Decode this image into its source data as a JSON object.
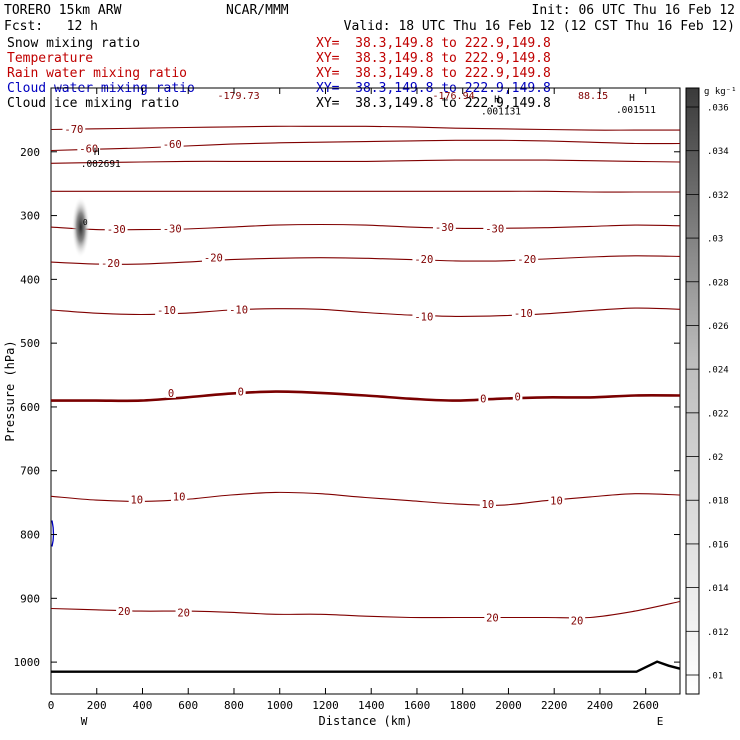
{
  "header": {
    "model": "TORERO  15km ARW",
    "center": "NCAR/MMM",
    "init": "Init: 06 UTC Thu 16 Feb 12",
    "fcst": "Fcst:   12 h",
    "valid": "Valid: 18 UTC Thu 16 Feb 12 (12 CST Thu 16 Feb 12)"
  },
  "fields": [
    {
      "name": "Snow mixing ratio",
      "xy": "XY=  38.3,149.8 to 222.9,149.8",
      "color": "#000000"
    },
    {
      "name": "Temperature",
      "xy": "XY=  38.3,149.8 to 222.9,149.8",
      "color": "#c00000"
    },
    {
      "name": "Rain water mixing ratio",
      "xy": "XY=  38.3,149.8 to 222.9,149.8",
      "color": "#c00000"
    },
    {
      "name": "Cloud water mixing ratio",
      "xy": "XY=  38.3,149.8 to 222.9,149.8",
      "color": "#0000c0"
    },
    {
      "name": "Cloud ice mixing ratio",
      "xy": "XY=  38.3,149.8 to 222.9,149.8",
      "color": "#000000"
    }
  ],
  "colors": {
    "contour": "#800000",
    "contour_zero": "#7a0000",
    "terrain": "#000000",
    "cloud_water": "#0000c0"
  },
  "chart_data": {
    "type": "cross-section",
    "xlabel": "Distance (km)",
    "ylabel": "Pressure (hPa)",
    "xlim": [
      0,
      2750
    ],
    "ylim": [
      1050,
      100
    ],
    "x_ticks": [
      0,
      200,
      400,
      600,
      800,
      1000,
      1200,
      1400,
      1600,
      1800,
      2000,
      2200,
      2400,
      2600
    ],
    "y_ticks": [
      200,
      300,
      400,
      500,
      600,
      700,
      800,
      900,
      1000
    ],
    "end_labels": {
      "left": "W",
      "right": "E"
    },
    "colorbar": {
      "unit": "g kg⁻¹",
      "ticks": [
        ".036",
        ".034",
        ".032",
        ".03",
        ".028",
        ".026",
        ".024",
        ".022",
        ".02",
        ".018",
        ".016",
        ".014",
        ".012",
        ".01"
      ]
    },
    "temperature_contours": [
      {
        "value": -70,
        "p": [
          165,
          164,
          163,
          162,
          161,
          160,
          160,
          160,
          161,
          163,
          164,
          165,
          166,
          166,
          166
        ]
      },
      {
        "value": -60,
        "p": [
          198,
          196,
          194,
          191,
          188,
          186,
          185,
          184,
          183,
          182,
          182,
          183,
          185,
          187,
          187
        ]
      },
      {
        "value": -50,
        "p": [
          218,
          217,
          216,
          215,
          215,
          215,
          215,
          215,
          214,
          213,
          213,
          213,
          214,
          215,
          216
        ]
      },
      {
        "value": -40,
        "p": [
          262,
          262,
          262,
          262,
          262,
          262,
          262,
          262,
          262,
          262,
          262,
          262,
          263,
          263,
          263
        ]
      },
      {
        "value": -30,
        "p": [
          318,
          322,
          322,
          321,
          318,
          315,
          314,
          315,
          318,
          320,
          320,
          319,
          317,
          315,
          316
        ]
      },
      {
        "value": -20,
        "p": [
          373,
          376,
          376,
          373,
          369,
          367,
          366,
          367,
          369,
          371,
          371,
          368,
          365,
          363,
          364
        ]
      },
      {
        "value": -10,
        "p": [
          448,
          453,
          455,
          453,
          448,
          446,
          447,
          452,
          456,
          458,
          457,
          454,
          449,
          445,
          447
        ]
      },
      {
        "value": 0,
        "p": [
          590,
          590,
          590,
          585,
          579,
          576,
          578,
          582,
          587,
          590,
          587,
          585,
          585,
          582,
          582
        ]
      },
      {
        "value": 10,
        "p": [
          740,
          746,
          748,
          745,
          738,
          734,
          736,
          742,
          747,
          752,
          754,
          747,
          741,
          736,
          738
        ]
      },
      {
        "value": 20,
        "p": [
          916,
          918,
          920,
          920,
          922,
          925,
          925,
          928,
          930,
          930,
          930,
          930,
          930,
          920,
          905
        ]
      }
    ],
    "contour_labels": [
      {
        "text": "-70",
        "x": 100,
        "p": 164
      },
      {
        "text": "-60",
        "x": 165,
        "p": 195
      },
      {
        "text": "-60",
        "x": 530,
        "p": 188
      },
      {
        "text": "-30",
        "x": 285,
        "p": 321
      },
      {
        "text": "-30",
        "x": 530,
        "p": 320
      },
      {
        "text": "-30",
        "x": 1720,
        "p": 318
      },
      {
        "text": "-30",
        "x": 1940,
        "p": 320
      },
      {
        "text": "-20",
        "x": 260,
        "p": 374
      },
      {
        "text": "-20",
        "x": 710,
        "p": 366
      },
      {
        "text": "-20",
        "x": 1630,
        "p": 368
      },
      {
        "text": "-20",
        "x": 2080,
        "p": 368
      },
      {
        "text": "-10",
        "x": 505,
        "p": 448
      },
      {
        "text": "-10",
        "x": 820,
        "p": 447
      },
      {
        "text": "-10",
        "x": 1630,
        "p": 458
      },
      {
        "text": "-10",
        "x": 2065,
        "p": 453
      },
      {
        "text": "0",
        "x": 525,
        "p": 578
      },
      {
        "text": "0",
        "x": 830,
        "p": 576
      },
      {
        "text": "0",
        "x": 1890,
        "p": 587
      },
      {
        "text": "0",
        "x": 2040,
        "p": 584
      },
      {
        "text": "10",
        "x": 375,
        "p": 745
      },
      {
        "text": "10",
        "x": 560,
        "p": 740
      },
      {
        "text": "10",
        "x": 1910,
        "p": 752
      },
      {
        "text": "10",
        "x": 2210,
        "p": 747
      },
      {
        "text": "20",
        "x": 320,
        "p": 920
      },
      {
        "text": "20",
        "x": 580,
        "p": 922
      },
      {
        "text": "20",
        "x": 1930,
        "p": 930
      },
      {
        "text": "20",
        "x": 2300,
        "p": 935
      }
    ],
    "maxima_labels": [
      {
        "mark": "H",
        "value": ".002691",
        "x": 200,
        "p": 205
      },
      {
        "mark": "H",
        "value": ".001131",
        "x": 1950,
        "p": 123
      },
      {
        "mark": "H",
        "value": ".001511",
        "x": 2540,
        "p": 120
      }
    ],
    "top_annotations": [
      {
        "text": "-179.73",
        "x": 820
      },
      {
        "text": "-176.94",
        "x": 1760
      },
      {
        "text": "88.15",
        "x": 2370
      }
    ],
    "snow_blob_label": {
      "text": "0",
      "x": 150,
      "p": 315
    },
    "terrain_pressure": 1015
  }
}
